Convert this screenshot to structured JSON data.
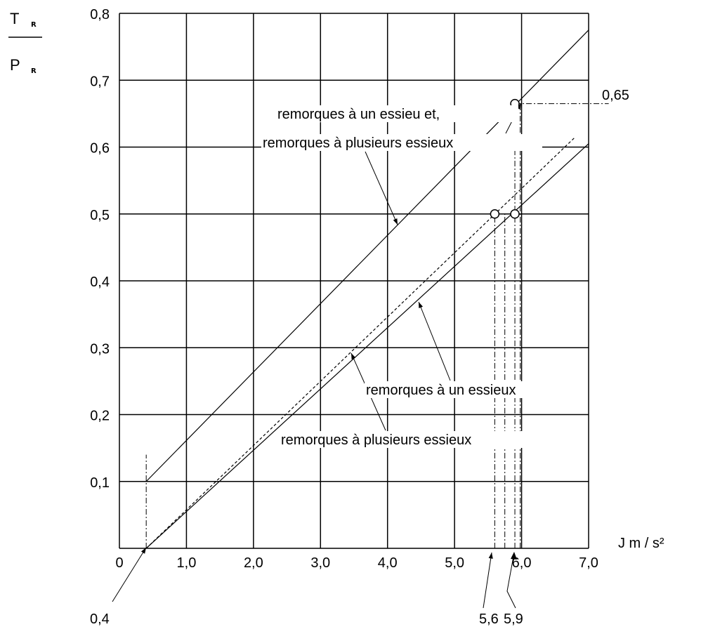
{
  "chart_data": {
    "type": "line",
    "title": "",
    "ylabel": {
      "top_main": "T",
      "top_sub": "R",
      "bottom_main": "P",
      "bottom_sub": "R"
    },
    "xlabel": "J  m / s²",
    "xlim": [
      0,
      7.0
    ],
    "ylim": [
      0,
      0.8
    ],
    "grid": true,
    "x_ticks": [
      {
        "v": 0,
        "label": "0"
      },
      {
        "v": 1,
        "label": "1,0"
      },
      {
        "v": 2,
        "label": "2,0"
      },
      {
        "v": 3,
        "label": "3,0"
      },
      {
        "v": 4,
        "label": "4,0"
      },
      {
        "v": 5,
        "label": "5,0"
      },
      {
        "v": 6,
        "label": "6,0"
      },
      {
        "v": 7,
        "label": "7,0"
      }
    ],
    "y_ticks": [
      {
        "v": 0.1,
        "label": "0,1"
      },
      {
        "v": 0.2,
        "label": "0,2"
      },
      {
        "v": 0.3,
        "label": "0,3"
      },
      {
        "v": 0.4,
        "label": "0,4"
      },
      {
        "v": 0.5,
        "label": "0,5"
      },
      {
        "v": 0.6,
        "label": "0,6"
      },
      {
        "v": 0.7,
        "label": "0,7"
      },
      {
        "v": 0.8,
        "label": "0,8"
      }
    ],
    "series": [
      {
        "name": "remorques à un essieu et remorques à plusieurs essieux",
        "style": "solid",
        "points": [
          [
            0.4,
            0.1
          ],
          [
            7.0,
            0.775
          ]
        ]
      },
      {
        "name": "remorques à un essieux",
        "style": "dashed",
        "points": [
          [
            0.4,
            0.0
          ],
          [
            6.8,
            0.615
          ]
        ]
      },
      {
        "name": "remorques à plusieurs essieux",
        "style": "solid",
        "points": [
          [
            0.4,
            0.0
          ],
          [
            7.0,
            0.605
          ]
        ]
      }
    ],
    "markers": [
      {
        "x": 5.6,
        "y": 0.5
      },
      {
        "x": 5.9,
        "y": 0.5
      },
      {
        "x": 5.9,
        "y": 0.665
      }
    ],
    "reference_lines": [
      {
        "orientation": "vertical",
        "x": 0.4,
        "y_from": 0.0,
        "y_to": 0.14
      },
      {
        "orientation": "vertical",
        "x": 5.6,
        "y_from": 0.0,
        "y_to": 0.5
      },
      {
        "orientation": "vertical",
        "x": 5.75,
        "y_from": 0.0,
        "y_to": 0.5
      },
      {
        "orientation": "vertical",
        "x": 5.9,
        "y_from": 0.0,
        "y_to": 0.6
      },
      {
        "orientation": "vertical",
        "x": 5.98,
        "y_from": 0.0,
        "y_to": 0.665
      },
      {
        "orientation": "horizontal",
        "y": 0.665,
        "x_from": 5.9,
        "x_to": 7.3
      }
    ],
    "annotations": {
      "label_065": "0,65",
      "label_04": "0,4",
      "label_56": "5,6",
      "label_59": "5,9",
      "upper_line_1": "remorques à un essieu et,",
      "upper_line_2": "remorques à plusieurs essieux",
      "lower_a": "remorques à un essieux",
      "lower_b": "remorques à plusieurs essieux"
    }
  }
}
